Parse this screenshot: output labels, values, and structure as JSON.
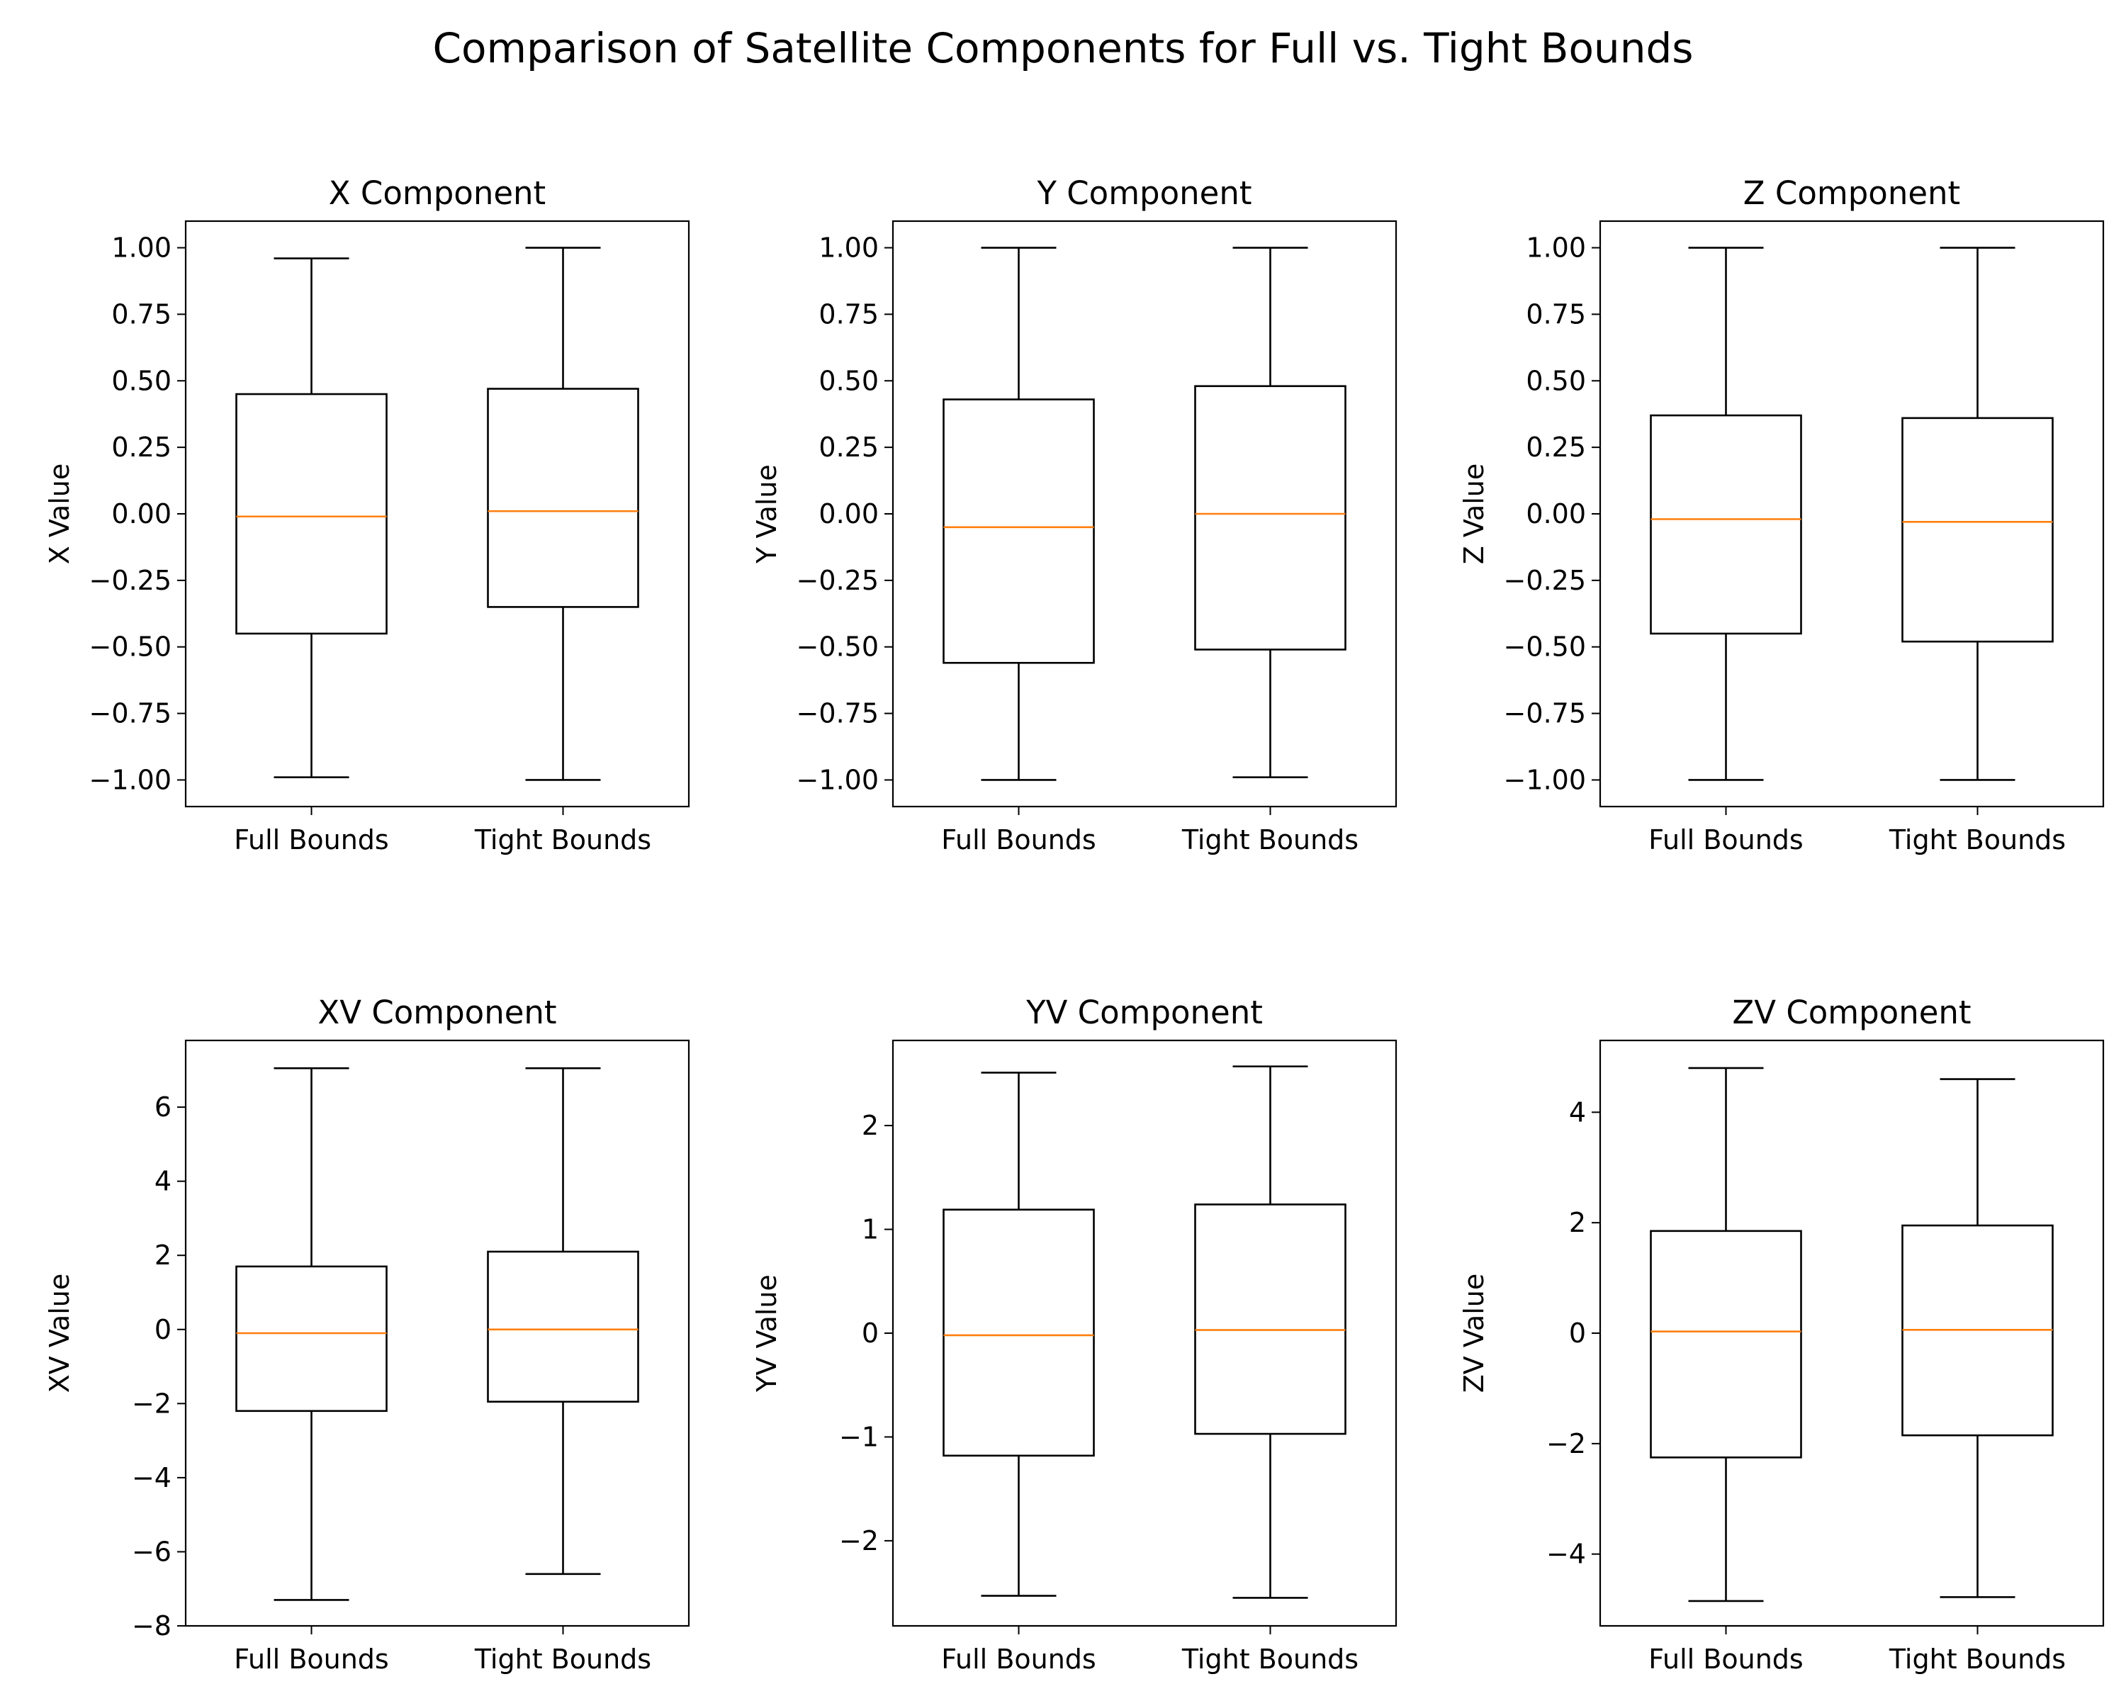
{
  "figure_title": "Comparison of Satellite Components for Full vs. Tight Bounds",
  "colors": {
    "box": "#000000",
    "median": "#ff7f0e",
    "background": "#ffffff"
  },
  "chart_data": [
    {
      "type": "box",
      "title": "X Component",
      "xlabel": "",
      "ylabel": "X Value",
      "categories": [
        "Full Bounds",
        "Tight Bounds"
      ],
      "ylim": [
        -1.1,
        1.1
      ],
      "yticks": [
        -1.0,
        -0.75,
        -0.5,
        -0.25,
        0.0,
        0.25,
        0.5,
        0.75,
        1.0
      ],
      "ytick_labels": [
        "−1.00",
        "−0.75",
        "−0.50",
        "−0.25",
        "0.00",
        "0.25",
        "0.50",
        "0.75",
        "1.00"
      ],
      "boxes": [
        {
          "whislo": -0.99,
          "q1": -0.45,
          "med": -0.01,
          "q3": 0.45,
          "whishi": 0.96
        },
        {
          "whislo": -1.0,
          "q1": -0.35,
          "med": 0.01,
          "q3": 0.47,
          "whishi": 1.0
        }
      ]
    },
    {
      "type": "box",
      "title": "Y Component",
      "xlabel": "",
      "ylabel": "Y Value",
      "categories": [
        "Full Bounds",
        "Tight Bounds"
      ],
      "ylim": [
        -1.1,
        1.1
      ],
      "yticks": [
        -1.0,
        -0.75,
        -0.5,
        -0.25,
        0.0,
        0.25,
        0.5,
        0.75,
        1.0
      ],
      "ytick_labels": [
        "−1.00",
        "−0.75",
        "−0.50",
        "−0.25",
        "0.00",
        "0.25",
        "0.50",
        "0.75",
        "1.00"
      ],
      "boxes": [
        {
          "whislo": -1.0,
          "q1": -0.56,
          "med": -0.05,
          "q3": 0.43,
          "whishi": 1.0
        },
        {
          "whislo": -0.99,
          "q1": -0.51,
          "med": 0.0,
          "q3": 0.48,
          "whishi": 1.0
        }
      ]
    },
    {
      "type": "box",
      "title": "Z Component",
      "xlabel": "",
      "ylabel": "Z Value",
      "categories": [
        "Full Bounds",
        "Tight Bounds"
      ],
      "ylim": [
        -1.1,
        1.1
      ],
      "yticks": [
        -1.0,
        -0.75,
        -0.5,
        -0.25,
        0.0,
        0.25,
        0.5,
        0.75,
        1.0
      ],
      "ytick_labels": [
        "−1.00",
        "−0.75",
        "−0.50",
        "−0.25",
        "0.00",
        "0.25",
        "0.50",
        "0.75",
        "1.00"
      ],
      "boxes": [
        {
          "whislo": -1.0,
          "q1": -0.45,
          "med": -0.02,
          "q3": 0.37,
          "whishi": 1.0
        },
        {
          "whislo": -1.0,
          "q1": -0.48,
          "med": -0.03,
          "q3": 0.36,
          "whishi": 1.0
        }
      ]
    },
    {
      "type": "box",
      "title": "XV Component",
      "xlabel": "",
      "ylabel": "XV Value",
      "categories": [
        "Full Bounds",
        "Tight Bounds"
      ],
      "ylim": [
        -8.0,
        7.8
      ],
      "yticks": [
        -8,
        -6,
        -4,
        -2,
        0,
        2,
        4,
        6
      ],
      "ytick_labels": [
        "−8",
        "−6",
        "−4",
        "−2",
        "0",
        "2",
        "4",
        "6"
      ],
      "boxes": [
        {
          "whislo": -7.3,
          "q1": -2.2,
          "med": -0.1,
          "q3": 1.7,
          "whishi": 7.05
        },
        {
          "whislo": -6.6,
          "q1": -1.95,
          "med": 0.0,
          "q3": 2.1,
          "whishi": 7.05
        }
      ]
    },
    {
      "type": "box",
      "title": "YV Component",
      "xlabel": "",
      "ylabel": "YV Value",
      "categories": [
        "Full Bounds",
        "Tight Bounds"
      ],
      "ylim": [
        -2.82,
        2.82
      ],
      "yticks": [
        -2,
        -1,
        0,
        1,
        2
      ],
      "ytick_labels": [
        "−2",
        "−1",
        "0",
        "1",
        "2"
      ],
      "boxes": [
        {
          "whislo": -2.53,
          "q1": -1.18,
          "med": -0.02,
          "q3": 1.19,
          "whishi": 2.51
        },
        {
          "whislo": -2.55,
          "q1": -0.97,
          "med": 0.03,
          "q3": 1.24,
          "whishi": 2.57
        }
      ]
    },
    {
      "type": "box",
      "title": "ZV Component",
      "xlabel": "",
      "ylabel": "ZV Value",
      "categories": [
        "Full Bounds",
        "Tight Bounds"
      ],
      "ylim": [
        -5.3,
        5.3
      ],
      "yticks": [
        -4,
        -2,
        0,
        2,
        4
      ],
      "ytick_labels": [
        "−4",
        "−2",
        "0",
        "2",
        "4"
      ],
      "boxes": [
        {
          "whislo": -4.85,
          "q1": -2.25,
          "med": 0.03,
          "q3": 1.85,
          "whishi": 4.8
        },
        {
          "whislo": -4.78,
          "q1": -1.85,
          "med": 0.06,
          "q3": 1.95,
          "whishi": 4.6
        }
      ]
    }
  ]
}
